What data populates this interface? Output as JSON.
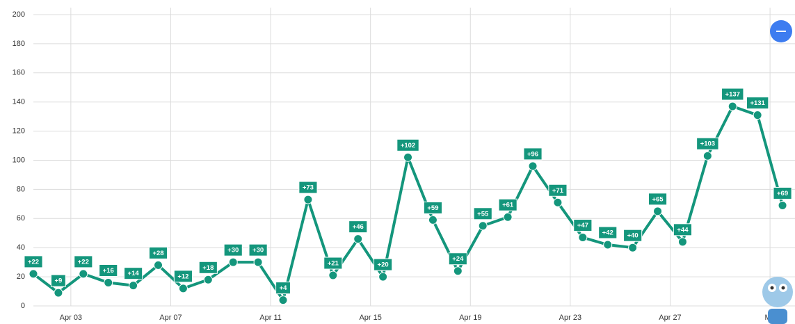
{
  "chart_data": {
    "type": "line",
    "x": [
      1.5,
      2.5,
      3.5,
      4.5,
      5.5,
      6.5,
      7.5,
      8.5,
      9.5,
      10.5,
      11.5,
      12.5,
      13.5,
      14.5,
      15.5,
      16.5,
      17.5,
      18.5,
      19.5,
      20.5,
      21.5,
      22.5,
      23.5,
      24.5,
      25.5,
      26.5,
      27.5,
      28.5,
      29.5,
      30.5,
      31.5
    ],
    "series": [
      {
        "color": "#14967c",
        "values": [
          22,
          9,
          22,
          16,
          14,
          28,
          12,
          18,
          30,
          30,
          4,
          73,
          21,
          46,
          20,
          102,
          59,
          24,
          55,
          61,
          96,
          71,
          47,
          42,
          40,
          65,
          44,
          103,
          137,
          131,
          69
        ],
        "value_labels": [
          "+22",
          "+9",
          "+22",
          "+16",
          "+14",
          "+28",
          "+12",
          "+18",
          "+30",
          "+30",
          "+4",
          "+73",
          "+21",
          "+46",
          "+20",
          "+102",
          "+59",
          "+24",
          "+55",
          "+61",
          "+96",
          "+71",
          "+47",
          "+42",
          "+40",
          "+65",
          "+44",
          "+103",
          "+137",
          "+131",
          "+69"
        ]
      }
    ],
    "xlim": [
      1.5,
      32
    ],
    "xticks": [
      {
        "value": 3,
        "label": "Apr 03"
      },
      {
        "value": 7,
        "label": "Apr 07"
      },
      {
        "value": 11,
        "label": "Apr 11"
      },
      {
        "value": 15,
        "label": "Apr 15"
      },
      {
        "value": 19,
        "label": "Apr 19"
      },
      {
        "value": 23,
        "label": "Apr 23"
      },
      {
        "value": 27,
        "label": "Apr 27"
      },
      {
        "value": 31,
        "label": "Ma"
      }
    ],
    "ylim": [
      0,
      200
    ],
    "yticks": [
      0,
      20,
      40,
      60,
      80,
      100,
      120,
      140,
      160,
      180,
      200
    ],
    "grid": true
  }
}
